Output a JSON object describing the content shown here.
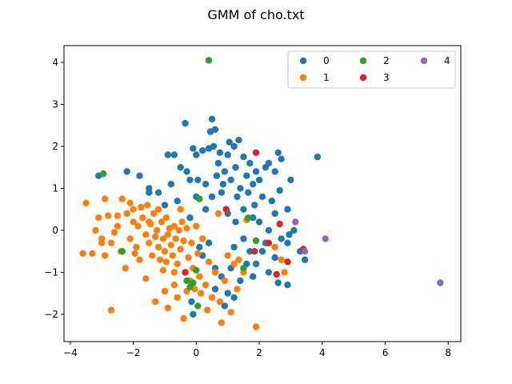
{
  "chart_data": {
    "type": "scatter",
    "title": "GMM of cho.txt",
    "xlabel": "",
    "ylabel": "",
    "xlim": [
      -4.2,
      8.4
    ],
    "ylim": [
      -2.65,
      4.4
    ],
    "xticks": [
      -4,
      -2,
      0,
      2,
      4,
      6,
      8
    ],
    "yticks": [
      -2,
      -1,
      0,
      1,
      2,
      3,
      4
    ],
    "grid": false,
    "legend": {
      "placement": "top-right",
      "columns": 3
    },
    "series": [
      {
        "name": "0",
        "color": "#1f77b4",
        "points": [
          [
            -3.1,
            1.3
          ],
          [
            -2.2,
            1.4
          ],
          [
            -1.8,
            1.3
          ],
          [
            -1.5,
            1.0
          ],
          [
            -1.2,
            0.9
          ],
          [
            -0.9,
            1.8
          ],
          [
            -0.7,
            1.8
          ],
          [
            -0.8,
            1.1
          ],
          [
            -0.5,
            1.5
          ],
          [
            -0.35,
            2.55
          ],
          [
            -0.3,
            1.4
          ],
          [
            -0.2,
            1.2
          ],
          [
            -0.1,
            1.95
          ],
          [
            0.0,
            1.8
          ],
          [
            0.05,
            1.2
          ],
          [
            0.2,
            1.9
          ],
          [
            0.3,
            1.1
          ],
          [
            0.4,
            1.95
          ],
          [
            0.45,
            2.35
          ],
          [
            0.5,
            2.65
          ],
          [
            0.55,
            2.0
          ],
          [
            0.6,
            2.4
          ],
          [
            0.65,
            1.3
          ],
          [
            0.7,
            1.6
          ],
          [
            0.75,
            1.85
          ],
          [
            0.8,
            0.9
          ],
          [
            0.85,
            1.1
          ],
          [
            0.9,
            1.4
          ],
          [
            1.0,
            1.8
          ],
          [
            1.05,
            2.1
          ],
          [
            1.1,
            1.2
          ],
          [
            1.2,
            2.0
          ],
          [
            1.25,
            1.5
          ],
          [
            1.3,
            0.8
          ],
          [
            1.35,
            2.15
          ],
          [
            1.4,
            1.0
          ],
          [
            1.5,
            1.75
          ],
          [
            1.6,
            1.3
          ],
          [
            1.65,
            0.9
          ],
          [
            1.7,
            1.6
          ],
          [
            1.8,
            1.1
          ],
          [
            1.85,
            0.6
          ],
          [
            1.9,
            1.4
          ],
          [
            2.0,
            1.2
          ],
          [
            2.1,
            0.8
          ],
          [
            2.2,
            1.5
          ],
          [
            2.3,
            1.6
          ],
          [
            2.4,
            0.7
          ],
          [
            2.5,
            1.4
          ],
          [
            2.6,
            1.85
          ],
          [
            2.65,
            0.95
          ],
          [
            2.7,
            1.7
          ],
          [
            2.9,
            0.5
          ],
          [
            3.0,
            1.2
          ],
          [
            3.85,
            1.75
          ],
          [
            1.5,
            0.5
          ],
          [
            1.8,
            0.3
          ],
          [
            2.0,
            0.2
          ],
          [
            2.3,
            0.0
          ],
          [
            2.5,
            0.4
          ],
          [
            2.7,
            -0.2
          ],
          [
            2.9,
            -0.3
          ],
          [
            3.1,
            0.0
          ],
          [
            3.3,
            -0.5
          ],
          [
            3.45,
            -0.7
          ],
          [
            1.2,
            -0.4
          ],
          [
            1.5,
            -0.2
          ],
          [
            1.7,
            -0.5
          ],
          [
            0.4,
            -0.3
          ],
          [
            0.6,
            -0.9
          ],
          [
            0.2,
            -0.6
          ],
          [
            0.8,
            -1.1
          ],
          [
            1.0,
            -1.5
          ],
          [
            0.9,
            -1.8
          ],
          [
            1.2,
            -1.6
          ],
          [
            1.4,
            -1.2
          ],
          [
            1.9,
            -0.8
          ],
          [
            2.3,
            -1.0
          ],
          [
            2.6,
            -1.25
          ],
          [
            2.9,
            -1.3
          ],
          [
            2.1,
            -0.5
          ],
          [
            -1.5,
            0.9
          ],
          [
            -1.0,
            0.6
          ],
          [
            -0.6,
            0.7
          ],
          [
            -0.2,
            0.3
          ],
          [
            0.0,
            0.8
          ],
          [
            0.3,
            0.5
          ],
          [
            0.5,
            0.8
          ],
          [
            1.0,
            0.4
          ],
          [
            1.25,
            0.2
          ],
          [
            1.6,
            -0.8
          ],
          [
            1.8,
            -1.1
          ],
          [
            0.1,
            -0.4
          ],
          [
            -0.15,
            -1.7
          ],
          [
            -0.1,
            -2.0
          ],
          [
            0.6,
            -1.4
          ],
          [
            1.1,
            -0.9
          ],
          [
            2.5,
            -0.65
          ],
          [
            2.2,
            -0.3
          ],
          [
            2.95,
            -0.1
          ]
        ]
      },
      {
        "name": "1",
        "color": "#ff7f0e",
        "points": [
          [
            -3.6,
            -0.55
          ],
          [
            -3.5,
            0.65
          ],
          [
            -3.3,
            -0.55
          ],
          [
            -3.2,
            0.0
          ],
          [
            -3.1,
            0.3
          ],
          [
            -3.0,
            -0.2
          ],
          [
            -2.9,
            -0.6
          ],
          [
            -2.8,
            0.35
          ],
          [
            -2.7,
            -0.3
          ],
          [
            -2.6,
            -0.05
          ],
          [
            -2.5,
            0.1
          ],
          [
            -2.4,
            -0.5
          ],
          [
            -2.35,
            0.75
          ],
          [
            -2.2,
            0.4
          ],
          [
            -2.1,
            -0.2
          ],
          [
            -2.0,
            0.5
          ],
          [
            -1.9,
            -0.4
          ],
          [
            -1.85,
            0.1
          ],
          [
            -1.8,
            -0.7
          ],
          [
            -1.7,
            0.3
          ],
          [
            -1.6,
            -0.1
          ],
          [
            -1.55,
            0.6
          ],
          [
            -1.5,
            -0.3
          ],
          [
            -1.45,
            0.15
          ],
          [
            -1.4,
            -0.6
          ],
          [
            -1.35,
            0.4
          ],
          [
            -1.3,
            -0.15
          ],
          [
            -1.25,
            0.0
          ],
          [
            -1.2,
            -0.4
          ],
          [
            -1.15,
            -0.7
          ],
          [
            -1.1,
            0.2
          ],
          [
            -1.05,
            -0.2
          ],
          [
            -1.0,
            -0.5
          ],
          [
            -0.95,
            0.3
          ],
          [
            -0.9,
            -0.1
          ],
          [
            -0.85,
            0.05
          ],
          [
            -0.8,
            -0.35
          ],
          [
            -0.75,
            -0.6
          ],
          [
            -0.7,
            0.1
          ],
          [
            -0.65,
            -0.2
          ],
          [
            -0.6,
            -0.8
          ],
          [
            -0.55,
            0.0
          ],
          [
            -0.5,
            -0.45
          ],
          [
            -0.45,
            0.2
          ],
          [
            -0.4,
            -0.25
          ],
          [
            -0.35,
            -1.0
          ],
          [
            -0.3,
            0.05
          ],
          [
            -0.25,
            -0.65
          ],
          [
            -0.2,
            -1.2
          ],
          [
            -0.15,
            -0.3
          ],
          [
            -0.1,
            -0.9
          ],
          [
            -0.05,
            -1.4
          ],
          [
            0.0,
            0.1
          ],
          [
            0.05,
            -0.55
          ],
          [
            0.1,
            -1.1
          ],
          [
            0.15,
            -1.5
          ],
          [
            0.2,
            -0.2
          ],
          [
            0.3,
            -1.3
          ],
          [
            0.4,
            -0.75
          ],
          [
            0.5,
            -1.6
          ],
          [
            0.6,
            -1.0
          ],
          [
            0.7,
            0.4
          ],
          [
            0.8,
            -2.2
          ],
          [
            0.9,
            -1.2
          ],
          [
            1.0,
            -0.6
          ],
          [
            1.1,
            -1.95
          ],
          [
            1.2,
            -0.8
          ],
          [
            1.3,
            -1.4
          ],
          [
            1.5,
            -1.0
          ],
          [
            1.6,
            0.25
          ],
          [
            1.9,
            -2.3
          ],
          [
            -2.7,
            -1.9
          ],
          [
            -1.6,
            -1.15
          ],
          [
            -1.3,
            -1.7
          ],
          [
            -1.0,
            -1.45
          ],
          [
            -0.9,
            -1.85
          ],
          [
            -0.7,
            -1.3
          ],
          [
            -0.6,
            -1.6
          ],
          [
            -0.4,
            -2.1
          ],
          [
            -0.3,
            -1.45
          ],
          [
            -3.0,
            -0.3
          ],
          [
            -2.5,
            0.35
          ],
          [
            -2.0,
            0.2
          ],
          [
            -1.75,
            0.55
          ],
          [
            -1.5,
            0.2
          ],
          [
            -1.2,
            0.5
          ],
          [
            -0.95,
            -0.75
          ],
          [
            -0.7,
            -1.0
          ],
          [
            -0.5,
            0.5
          ],
          [
            2.5,
            -0.4
          ],
          [
            2.7,
            -0.7
          ],
          [
            2.8,
            -1.0
          ],
          [
            -2.25,
            -0.9
          ],
          [
            -1.95,
            -0.55
          ],
          [
            -1.05,
            -0.95
          ],
          [
            0.35,
            -1.9
          ],
          [
            0.75,
            -1.7
          ],
          [
            1.35,
            -0.7
          ],
          [
            -2.9,
            0.75
          ],
          [
            -2.1,
            0.65
          ]
        ]
      },
      {
        "name": "2",
        "color": "#2ca02c",
        "points": [
          [
            0.4,
            4.05
          ],
          [
            -2.95,
            1.35
          ],
          [
            -2.35,
            -0.5
          ],
          [
            0.1,
            0.75
          ],
          [
            -0.3,
            -1.2
          ],
          [
            -0.2,
            -1.35
          ],
          [
            -0.1,
            -1.25
          ],
          [
            0.0,
            -0.95
          ],
          [
            0.05,
            -1.8
          ],
          [
            1.5,
            -0.9
          ],
          [
            1.65,
            0.3
          ],
          [
            1.9,
            -0.25
          ]
        ]
      },
      {
        "name": "3",
        "color": "#d62728",
        "points": [
          [
            1.9,
            1.85
          ],
          [
            0.95,
            0.5
          ],
          [
            2.65,
            0.15
          ],
          [
            2.3,
            -0.3
          ],
          [
            2.55,
            -1.05
          ],
          [
            2.9,
            -0.75
          ],
          [
            3.4,
            -0.45
          ],
          [
            -0.35,
            -1.0
          ],
          [
            1.85,
            -0.5
          ]
        ]
      },
      {
        "name": "4",
        "color": "#9467bd",
        "points": [
          [
            3.15,
            0.2
          ],
          [
            4.1,
            -0.2
          ],
          [
            3.45,
            -0.5
          ],
          [
            7.75,
            -1.25
          ]
        ]
      }
    ]
  }
}
